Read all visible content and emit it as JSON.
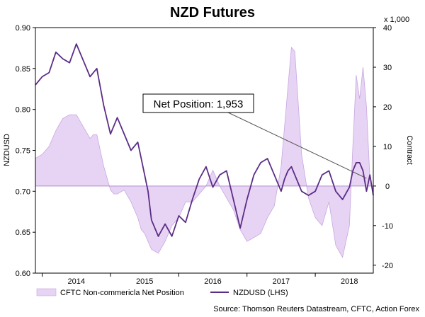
{
  "chart_data": {
    "type": "line",
    "title": "NZD Futures",
    "source_text": "Source: Thomson Reuters Datastream, CFTC, Action Forex",
    "left_axis": {
      "label": "NZDUSD",
      "ylim": [
        0.6,
        0.9
      ],
      "ticks": [
        "0.60",
        "0.65",
        "0.70",
        "0.75",
        "0.80",
        "0.85",
        "0.90"
      ],
      "tick_values": [
        0.6,
        0.65,
        0.7,
        0.75,
        0.8,
        0.85,
        0.9
      ]
    },
    "right_axis": {
      "label": "Contract",
      "multiplier_label": "x 1,000",
      "ylim": [
        -22,
        40
      ],
      "ticks": [
        "-20",
        "-10",
        "0",
        "10",
        "20",
        "30",
        "40"
      ],
      "tick_values": [
        -20,
        -10,
        0,
        10,
        20,
        30,
        40
      ]
    },
    "x_axis": {
      "xlim": [
        2013.4,
        2018.35
      ],
      "year_ticks": [
        2014,
        2015,
        2016,
        2017,
        2018
      ],
      "year_labels": [
        "2014",
        "2015",
        "2016",
        "2017",
        "2018"
      ]
    },
    "annotation": {
      "text": "Net Position: 1,953",
      "x": 2018.25,
      "value": 1.953
    },
    "legend": {
      "position": "bottom",
      "entries": [
        "CFTC Non-commericla Net Position",
        "NZDUSD (LHS)"
      ]
    },
    "colors": {
      "line": "#5b2d86",
      "area_fill": "#e7d3f3",
      "area_stroke": "#c7a8e0",
      "zero_line": "#a57cc6",
      "annotation_line": "#555555"
    },
    "series": [
      {
        "name": "CFTC Non-commericla Net Position",
        "axis": "right",
        "kind": "area",
        "x": [
          2013.4,
          2013.5,
          2013.6,
          2013.7,
          2013.8,
          2013.9,
          2014.0,
          2014.1,
          2014.2,
          2014.25,
          2014.3,
          2014.4,
          2014.5,
          2014.55,
          2014.6,
          2014.7,
          2014.8,
          2014.9,
          2014.95,
          2015.0,
          2015.05,
          2015.1,
          2015.2,
          2015.3,
          2015.4,
          2015.5,
          2015.6,
          2015.7,
          2015.8,
          2015.9,
          2016.0,
          2016.1,
          2016.2,
          2016.3,
          2016.4,
          2016.5,
          2016.6,
          2016.7,
          2016.8,
          2016.9,
          2017.0,
          2017.05,
          2017.1,
          2017.15,
          2017.2,
          2017.3,
          2017.4,
          2017.5,
          2017.6,
          2017.7,
          2017.8,
          2017.9,
          2018.0,
          2018.05,
          2018.1,
          2018.15,
          2018.2,
          2018.25,
          2018.3,
          2018.35
        ],
        "values": [
          7,
          8,
          10,
          14,
          17,
          18,
          18,
          15,
          12,
          13,
          13,
          5,
          -1,
          -2,
          -2,
          -1,
          -4,
          -8,
          -11,
          -12,
          -14,
          -16,
          -17,
          -14,
          -10,
          -8,
          -4,
          -4,
          -2,
          0,
          4,
          0,
          -3,
          -6,
          -11,
          -14,
          -13,
          -12,
          -8,
          -5,
          5,
          15,
          25,
          35,
          34,
          8,
          -3,
          -8,
          -10,
          -4,
          -15,
          -18,
          -10,
          10,
          28,
          22,
          30,
          20,
          2,
          -1
        ],
        "plot_values": [
          7,
          8,
          10,
          14,
          17,
          18,
          18,
          15,
          12,
          13,
          13,
          5,
          -1,
          -2,
          -2,
          -1,
          -4,
          -8,
          -11,
          -12,
          -14,
          -16,
          -17,
          -14,
          -10,
          -8,
          -4,
          -4,
          -2,
          0,
          4,
          0,
          -3,
          -6,
          -11,
          -14,
          -13,
          -12,
          -8,
          -5,
          5,
          15,
          25,
          35,
          34,
          8,
          -3,
          -8,
          -10,
          -4,
          -15,
          -18,
          -10,
          10,
          28,
          22,
          30,
          20,
          2,
          -1
        ]
      },
      {
        "name": "NZDUSD (LHS)",
        "axis": "left",
        "kind": "line",
        "x": [
          2013.4,
          2013.5,
          2013.6,
          2013.7,
          2013.8,
          2013.9,
          2014.0,
          2014.1,
          2014.2,
          2014.25,
          2014.3,
          2014.4,
          2014.5,
          2014.55,
          2014.6,
          2014.7,
          2014.8,
          2014.9,
          2014.95,
          2015.0,
          2015.05,
          2015.1,
          2015.2,
          2015.3,
          2015.4,
          2015.5,
          2015.6,
          2015.7,
          2015.8,
          2015.9,
          2016.0,
          2016.1,
          2016.2,
          2016.3,
          2016.4,
          2016.5,
          2016.6,
          2016.7,
          2016.8,
          2016.9,
          2017.0,
          2017.05,
          2017.1,
          2017.15,
          2017.2,
          2017.3,
          2017.4,
          2017.5,
          2017.6,
          2017.7,
          2017.8,
          2017.9,
          2018.0,
          2018.05,
          2018.1,
          2018.15,
          2018.2,
          2018.25,
          2018.3,
          2018.35
        ],
        "values": [
          0.83,
          0.84,
          0.845,
          0.87,
          0.862,
          0.857,
          0.88,
          0.86,
          0.84,
          0.845,
          0.85,
          0.805,
          0.77,
          0.78,
          0.79,
          0.77,
          0.75,
          0.76,
          0.74,
          0.72,
          0.7,
          0.665,
          0.645,
          0.66,
          0.645,
          0.67,
          0.662,
          0.69,
          0.715,
          0.73,
          0.705,
          0.72,
          0.725,
          0.69,
          0.655,
          0.69,
          0.72,
          0.735,
          0.74,
          0.72,
          0.7,
          0.715,
          0.725,
          0.73,
          0.72,
          0.7,
          0.695,
          0.7,
          0.72,
          0.725,
          0.7,
          0.69,
          0.705,
          0.725,
          0.735,
          0.735,
          0.725,
          0.7,
          0.72,
          0.695
        ],
        "plot_values": [
          0.83,
          0.84,
          0.845,
          0.87,
          0.862,
          0.857,
          0.88,
          0.86,
          0.84,
          0.845,
          0.85,
          0.805,
          0.77,
          0.78,
          0.79,
          0.77,
          0.75,
          0.76,
          0.74,
          0.72,
          0.7,
          0.665,
          0.645,
          0.66,
          0.645,
          0.67,
          0.662,
          0.69,
          0.715,
          0.73,
          0.705,
          0.72,
          0.725,
          0.69,
          0.655,
          0.69,
          0.72,
          0.735,
          0.74,
          0.72,
          0.7,
          0.715,
          0.725,
          0.73,
          0.72,
          0.7,
          0.695,
          0.7,
          0.72,
          0.725,
          0.7,
          0.69,
          0.705,
          0.725,
          0.735,
          0.735,
          0.725,
          0.7,
          0.72,
          0.695
        ]
      }
    ]
  }
}
